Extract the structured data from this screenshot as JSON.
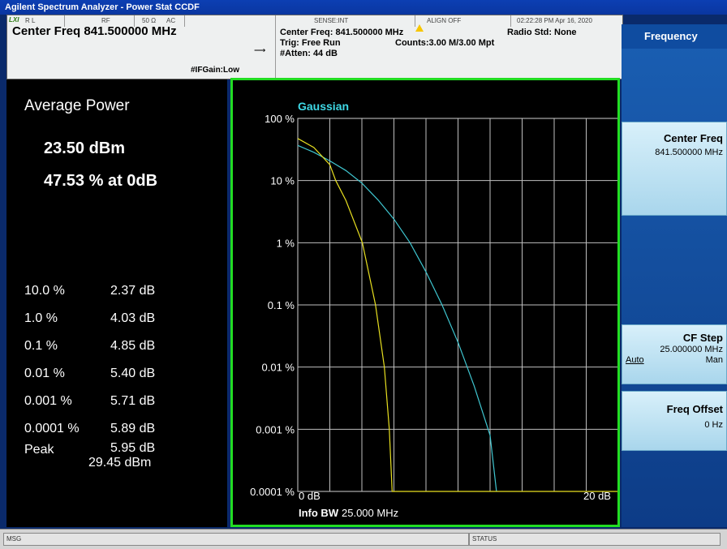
{
  "window": {
    "title": "Agilent Spectrum Analyzer - Power Stat CCDF"
  },
  "header": {
    "logo": "LXI",
    "rl": "R L",
    "rf": "RF",
    "impedance": "50 Ω",
    "coupling": "AC",
    "sense": "SENSE:INT",
    "align": "ALIGN OFF",
    "timestamp": "02:22:28 PM Apr 16, 2020",
    "center_freq_title": "Center Freq 841.500000 MHz",
    "ifgain": "#IFGain:Low",
    "center_freq_line": "Center Freq: 841.500000 MHz",
    "trig": "Trig: Free Run",
    "atten": "#Atten: 44 dB",
    "counts": "Counts:3.00 M/3.00 Mpt",
    "radio_std": "Radio Std: None"
  },
  "left_panel": {
    "avg_power_label": "Average Power",
    "avg_power_value": "23.50 dBm",
    "pct_at_0db": "47.53 % at 0dB",
    "rows": [
      {
        "pct": "10.0 %",
        "db": "2.37 dB"
      },
      {
        "pct": "1.0 %",
        "db": "4.03 dB"
      },
      {
        "pct": "0.1 %",
        "db": "4.85 dB"
      },
      {
        "pct": "0.01 %",
        "db": "5.40 dB"
      },
      {
        "pct": "0.001 %",
        "db": "5.71 dB"
      },
      {
        "pct": "0.0001 %",
        "db": "5.89 dB"
      }
    ],
    "peak_label": "Peak",
    "peak_db": "5.95 dB",
    "peak_dbm": "29.45 dBm"
  },
  "graph": {
    "legend": "Gaussian",
    "xmin_label": "0 dB",
    "xmax_label": "20 dB",
    "info_bw_label": "Info BW",
    "info_bw_value": "25.000 MHz",
    "ylabels": [
      "100 %",
      "10 %",
      "1 %",
      "0.1 %",
      "0.01 %",
      "0.001 %",
      "0.0001 %"
    ]
  },
  "chart_data": {
    "type": "line",
    "xlim": [
      0,
      20
    ],
    "ylim": [
      0.0001,
      100
    ],
    "yscale": "log",
    "grid": true,
    "series": [
      {
        "name": "Gaussian",
        "color": "#3fc6d0",
        "points": [
          [
            0,
            36.8
          ],
          [
            1,
            28.5
          ],
          [
            2,
            20.7
          ],
          [
            3,
            14.5
          ],
          [
            4,
            9.1
          ],
          [
            5,
            4.9
          ],
          [
            6,
            2.4
          ],
          [
            7,
            1.0
          ],
          [
            8,
            0.34
          ],
          [
            9,
            0.1
          ],
          [
            10,
            0.025
          ],
          [
            11,
            0.005
          ],
          [
            12,
            0.0008
          ],
          [
            12.4,
            0.0001
          ]
        ]
      },
      {
        "color": "#e8e020",
        "points": [
          [
            0,
            47.53
          ],
          [
            1,
            34
          ],
          [
            2,
            18
          ],
          [
            2.37,
            10
          ],
          [
            3,
            4.8
          ],
          [
            4.03,
            1.0
          ],
          [
            4.85,
            0.1
          ],
          [
            5.4,
            0.01
          ],
          [
            5.71,
            0.001
          ],
          [
            5.89,
            0.0001
          ],
          [
            20,
            0.0001
          ]
        ]
      }
    ]
  },
  "softkeys": {
    "title": "Frequency",
    "center_freq_label": "Center Freq",
    "center_freq_value": "841.500000 MHz",
    "cf_step_label": "CF Step",
    "cf_step_value": "25.000000 MHz",
    "cf_step_auto": "Auto",
    "cf_step_man": "Man",
    "freq_offset_label": "Freq Offset",
    "freq_offset_value": "0 Hz"
  },
  "status": {
    "msg": "MSG",
    "status": "STATUS"
  },
  "colors": {
    "frame": "#22dd22",
    "gaussian": "#3fc6d0",
    "trace": "#e8e020",
    "legend": "#3fd9e6"
  }
}
